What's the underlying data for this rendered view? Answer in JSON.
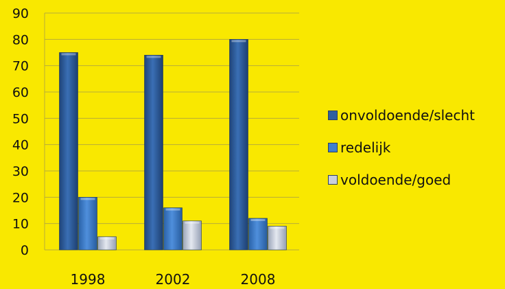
{
  "chart_data": {
    "type": "bar",
    "categories": [
      "1998",
      "2002",
      "2008"
    ],
    "series": [
      {
        "name": "onvoldoende/slecht",
        "values": [
          75,
          74,
          80
        ],
        "color": "#2f5f9e"
      },
      {
        "name": "redelijk",
        "values": [
          20,
          16,
          12
        ],
        "color": "#3f7fcf"
      },
      {
        "name": "voldoende/goed",
        "values": [
          5,
          11,
          9
        ],
        "color": "#c9cfdc"
      }
    ],
    "ylim": [
      0,
      90
    ],
    "yticks": [
      "0",
      "10",
      "20",
      "30",
      "40",
      "50",
      "60",
      "70",
      "80",
      "90"
    ],
    "grid": true,
    "legend_position": "right",
    "background_color": "#f9e800"
  }
}
